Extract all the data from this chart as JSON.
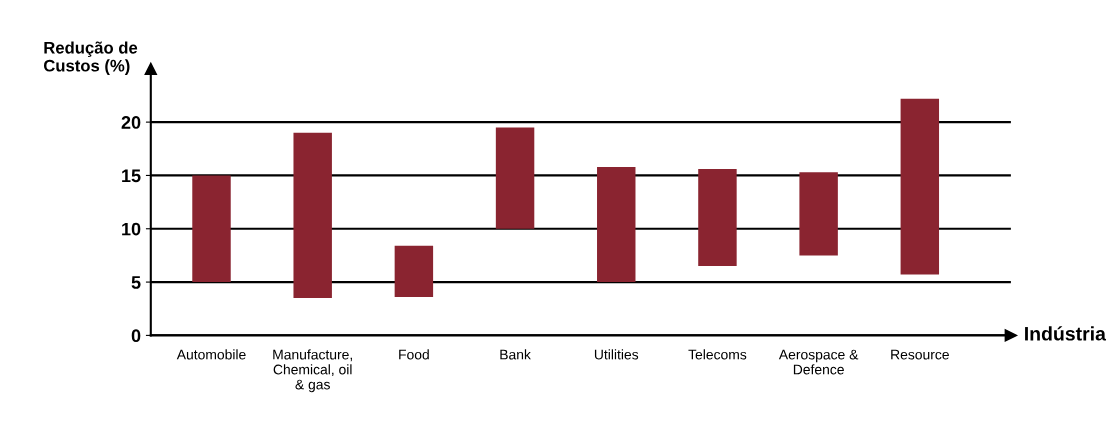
{
  "chart_data": {
    "type": "bar",
    "ylabel": "Redução de\nCustos (%)",
    "xlabel": "Indústria",
    "categories": [
      "Automobile",
      "Manufacture,\nChemical, oil\n& gas",
      "Food",
      "Bank",
      "Utilities",
      "Telecoms",
      "Aerospace &\nDefence",
      "Resource"
    ],
    "base": [
      5,
      3.5,
      3.6,
      10,
      5,
      6.5,
      7.5,
      5.7
    ],
    "values": [
      10,
      15.5,
      4.8,
      9.5,
      10.8,
      9.1,
      7.8,
      16.5
    ],
    "color": "#8a2430",
    "ylim": [
      0,
      25
    ],
    "yticks": [
      0,
      5,
      10,
      15,
      20
    ],
    "grid": "y"
  }
}
